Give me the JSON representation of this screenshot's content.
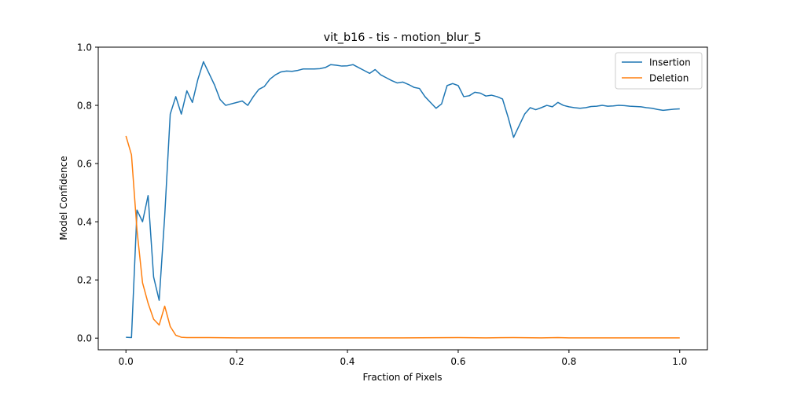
{
  "chart_data": {
    "type": "line",
    "title": "vit_b16 - tis - motion_blur_5",
    "xlabel": "Fraction of Pixels",
    "ylabel": "Model Confidence",
    "xlim": [
      -0.05,
      1.05
    ],
    "ylim": [
      -0.04,
      1.0
    ],
    "xticks": [
      "0.0",
      "0.2",
      "0.4",
      "0.6",
      "0.8",
      "1.0"
    ],
    "yticks": [
      "0.0",
      "0.2",
      "0.4",
      "0.6",
      "0.8",
      "1.0"
    ],
    "grid": false,
    "legend_position": "top-right",
    "series": [
      {
        "name": "Insertion",
        "color": "#1f77b4",
        "x": [
          0.0,
          0.01,
          0.02,
          0.03,
          0.04,
          0.05,
          0.06,
          0.07,
          0.08,
          0.09,
          0.1,
          0.11,
          0.12,
          0.13,
          0.14,
          0.15,
          0.16,
          0.17,
          0.18,
          0.19,
          0.2,
          0.21,
          0.22,
          0.23,
          0.24,
          0.25,
          0.26,
          0.27,
          0.28,
          0.29,
          0.3,
          0.31,
          0.32,
          0.33,
          0.34,
          0.35,
          0.36,
          0.37,
          0.38,
          0.39,
          0.4,
          0.41,
          0.42,
          0.43,
          0.44,
          0.45,
          0.46,
          0.47,
          0.48,
          0.49,
          0.5,
          0.51,
          0.52,
          0.53,
          0.54,
          0.55,
          0.56,
          0.57,
          0.58,
          0.59,
          0.6,
          0.61,
          0.62,
          0.63,
          0.64,
          0.65,
          0.66,
          0.67,
          0.68,
          0.69,
          0.7,
          0.71,
          0.72,
          0.73,
          0.74,
          0.75,
          0.76,
          0.77,
          0.78,
          0.79,
          0.8,
          0.81,
          0.82,
          0.83,
          0.84,
          0.85,
          0.86,
          0.87,
          0.88,
          0.89,
          0.9,
          0.91,
          0.92,
          0.93,
          0.94,
          0.95,
          0.96,
          0.97,
          0.98,
          0.99,
          1.0
        ],
        "values": [
          0.003,
          0.002,
          0.44,
          0.4,
          0.49,
          0.21,
          0.13,
          0.42,
          0.77,
          0.83,
          0.77,
          0.85,
          0.81,
          0.89,
          0.95,
          0.91,
          0.87,
          0.82,
          0.8,
          0.805,
          0.81,
          0.815,
          0.8,
          0.83,
          0.855,
          0.865,
          0.89,
          0.905,
          0.915,
          0.918,
          0.917,
          0.92,
          0.925,
          0.925,
          0.925,
          0.926,
          0.93,
          0.94,
          0.938,
          0.935,
          0.936,
          0.94,
          0.93,
          0.92,
          0.91,
          0.923,
          0.905,
          0.895,
          0.885,
          0.877,
          0.88,
          0.872,
          0.862,
          0.858,
          0.83,
          0.81,
          0.79,
          0.805,
          0.868,
          0.875,
          0.868,
          0.83,
          0.833,
          0.845,
          0.842,
          0.832,
          0.835,
          0.83,
          0.822,
          0.76,
          0.69,
          0.73,
          0.77,
          0.792,
          0.785,
          0.792,
          0.8,
          0.795,
          0.81,
          0.8,
          0.795,
          0.792,
          0.79,
          0.792,
          0.796,
          0.797,
          0.8,
          0.797,
          0.798,
          0.8,
          0.799,
          0.797,
          0.796,
          0.795,
          0.792,
          0.79,
          0.786,
          0.783,
          0.785,
          0.787,
          0.788
        ]
      },
      {
        "name": "Deletion",
        "color": "#ff7f0e",
        "x": [
          0.0,
          0.01,
          0.02,
          0.03,
          0.04,
          0.05,
          0.06,
          0.07,
          0.08,
          0.09,
          0.1,
          0.11,
          0.12,
          0.15,
          0.2,
          0.3,
          0.4,
          0.5,
          0.6,
          0.65,
          0.7,
          0.75,
          0.78,
          0.8,
          0.85,
          0.9,
          0.95,
          1.0
        ],
        "values": [
          0.695,
          0.63,
          0.37,
          0.19,
          0.12,
          0.065,
          0.045,
          0.11,
          0.04,
          0.01,
          0.003,
          0.002,
          0.002,
          0.002,
          0.001,
          0.001,
          0.001,
          0.001,
          0.002,
          0.001,
          0.002,
          0.001,
          0.002,
          0.001,
          0.001,
          0.001,
          0.001,
          0.001
        ]
      }
    ]
  }
}
